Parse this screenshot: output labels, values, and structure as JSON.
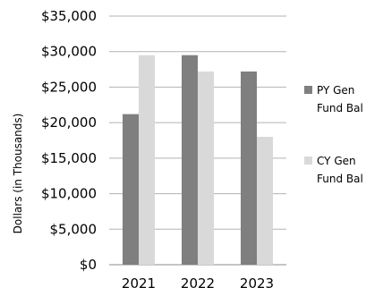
{
  "chart_data": {
    "type": "bar",
    "categories": [
      "2021",
      "2022",
      "2023"
    ],
    "series": [
      {
        "name": "PY Gen Fund Bal",
        "values": [
          21200,
          29500,
          27200
        ],
        "color": "#7f7f7f"
      },
      {
        "name": "CY Gen Fund Bal",
        "values": [
          29500,
          27200,
          18000
        ],
        "color": "#d9d9d9"
      }
    ],
    "legend_lines": [
      [
        "PY Gen",
        "Fund Bal"
      ],
      [
        "CY Gen",
        "Fund Bal"
      ]
    ],
    "ylabel": "Dollars (in Thousands)",
    "ylim": [
      0,
      35000
    ],
    "ytick_labels": [
      "$0",
      "$5,000",
      "$10,000",
      "$15,000",
      "$20,000",
      "$25,000",
      "$30,000",
      "$35,000"
    ],
    "grid": true,
    "legend_position": "right"
  }
}
